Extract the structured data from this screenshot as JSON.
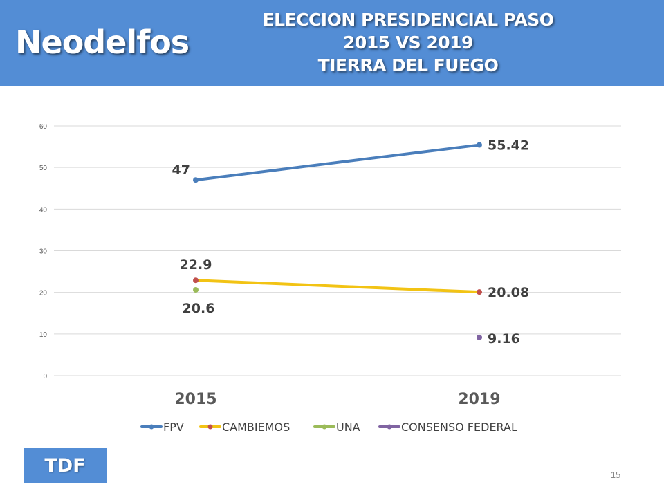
{
  "header": {
    "brand": "Neodelfos",
    "title_lines": [
      "ELECCION PRESIDENCIAL PASO",
      "2015 VS 2019",
      "TIERRA DEL FUEGO"
    ]
  },
  "footer": {
    "badge": "TDF",
    "page_number": "15"
  },
  "colors": {
    "header_bg": "#538dd5"
  },
  "chart_data": {
    "type": "line",
    "categories": [
      "2015",
      "2019"
    ],
    "ylim": [
      0,
      60
    ],
    "yticks": [
      0,
      10,
      20,
      30,
      40,
      50,
      60
    ],
    "grid": true,
    "legend_position": "bottom",
    "series": [
      {
        "name": "FPV",
        "color": "#4a7ebb",
        "values": [
          47,
          55.42
        ],
        "labels": [
          "47",
          "55.42"
        ],
        "line": true
      },
      {
        "name": "CAMBIEMOS",
        "color": "#f2c314",
        "marker_color": "#c0504d",
        "values": [
          22.9,
          20.08
        ],
        "labels": [
          "22.9",
          "20.08"
        ],
        "line": true
      },
      {
        "name": "UNA",
        "color": "#9bbb59",
        "values": [
          20.6,
          null
        ],
        "labels": [
          "20.6",
          ""
        ],
        "line": true
      },
      {
        "name": "CONSENSO FEDERAL",
        "color": "#8064a2",
        "values": [
          null,
          9.16
        ],
        "labels": [
          "",
          "9.16"
        ],
        "line": true
      }
    ]
  }
}
